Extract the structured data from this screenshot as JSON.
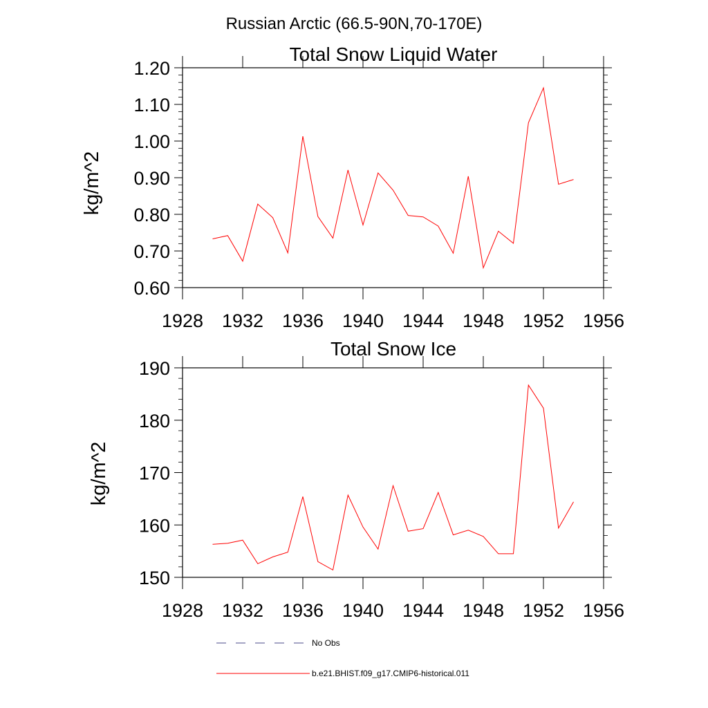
{
  "figure": {
    "main_title": "Russian Arctic (66.5-90N,70-170E)"
  },
  "colors": {
    "series": "#ff0000",
    "no_obs": "#4a4a8a",
    "axis": "#000000"
  },
  "legend": {
    "entries": [
      {
        "label": "No Obs",
        "style": "dashed"
      },
      {
        "label": "b.e21.BHIST.f09_g17.CMIP6-historical.011",
        "style": "solid"
      }
    ]
  },
  "chart_data": [
    {
      "type": "line",
      "title": "Total Snow Liquid Water",
      "xlabel": "",
      "ylabel": "kg/m^2",
      "xlim": [
        1928,
        1956
      ],
      "ylim": [
        0.6,
        1.2
      ],
      "xticks": [
        1928,
        1932,
        1936,
        1940,
        1944,
        1948,
        1952,
        1956
      ],
      "yticks": [
        0.6,
        0.7,
        0.8,
        0.9,
        1.0,
        1.1,
        1.2
      ],
      "ytick_labels": [
        "0.60",
        "0.70",
        "0.80",
        "0.90",
        "1.00",
        "1.10",
        "1.20"
      ],
      "grid": false,
      "x": [
        1930,
        1931,
        1932,
        1933,
        1934,
        1935,
        1936,
        1937,
        1938,
        1939,
        1940,
        1941,
        1942,
        1943,
        1944,
        1945,
        1946,
        1947,
        1948,
        1949,
        1950,
        1951,
        1952,
        1953,
        1954
      ],
      "series": [
        {
          "name": "b.e21.BHIST.f09_g17.CMIP6-historical.011",
          "values": [
            0.733,
            0.742,
            0.672,
            0.828,
            0.791,
            0.695,
            1.013,
            0.794,
            0.735,
            0.921,
            0.771,
            0.913,
            0.866,
            0.797,
            0.793,
            0.768,
            0.694,
            0.904,
            0.654,
            0.754,
            0.721,
            1.05,
            1.145,
            0.882,
            0.895
          ]
        }
      ]
    },
    {
      "type": "line",
      "title": "Total Snow Ice",
      "xlabel": "",
      "ylabel": "kg/m^2",
      "xlim": [
        1928,
        1956
      ],
      "ylim": [
        150,
        190
      ],
      "xticks": [
        1928,
        1932,
        1936,
        1940,
        1944,
        1948,
        1952,
        1956
      ],
      "yticks": [
        150,
        160,
        170,
        180,
        190
      ],
      "ytick_labels": [
        "150",
        "160",
        "170",
        "180",
        "190"
      ],
      "grid": false,
      "x": [
        1930,
        1931,
        1932,
        1933,
        1934,
        1935,
        1936,
        1937,
        1938,
        1939,
        1940,
        1941,
        1942,
        1943,
        1944,
        1945,
        1946,
        1947,
        1948,
        1949,
        1950,
        1951,
        1952,
        1953,
        1954
      ],
      "series": [
        {
          "name": "b.e21.BHIST.f09_g17.CMIP6-historical.011",
          "values": [
            156.3,
            156.5,
            157.1,
            152.6,
            153.9,
            154.8,
            165.4,
            153.0,
            151.4,
            165.7,
            159.6,
            155.4,
            167.5,
            158.8,
            159.3,
            166.2,
            158.1,
            159.0,
            157.8,
            154.5,
            154.5,
            186.7,
            182.3,
            159.4,
            164.4
          ]
        }
      ]
    }
  ]
}
